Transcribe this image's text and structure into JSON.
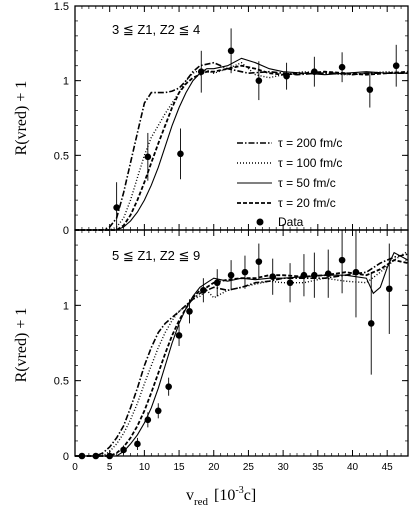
{
  "figure": {
    "x_label_main": "v",
    "x_label_sub": "red",
    "x_label_units": "[10",
    "x_label_exp": "-3",
    "x_label_close": "c]"
  },
  "chart_data": [
    {
      "type": "line",
      "panel": "top",
      "annotation": "3 ≦ Z1, Z2 ≦ 4",
      "ylabel": "R(vred) + 1",
      "ylim": [
        0,
        1.5
      ],
      "xlim": [
        0,
        48
      ],
      "yticks": [
        "0",
        "0.5",
        "1",
        "1.5"
      ],
      "legend": {
        "placement": "center-right",
        "entries": [
          {
            "label": "τ = 200 fm/c",
            "style": "dash-dot"
          },
          {
            "label": "τ = 100 fm/c",
            "style": "dotted"
          },
          {
            "label": "τ = 50 fm/c",
            "style": "solid"
          },
          {
            "label": "τ = 20 fm/c",
            "style": "dashed"
          },
          {
            "label": "Data",
            "style": "marker"
          }
        ]
      },
      "series": [
        {
          "name": "τ = 200 fm/c",
          "style": "dash-dot",
          "x": [
            0,
            4,
            5,
            6,
            7,
            8,
            9,
            10,
            11,
            12,
            13,
            14,
            15,
            16,
            17,
            18,
            20,
            22,
            25,
            28,
            30,
            32,
            35,
            38,
            40,
            42,
            45,
            48
          ],
          "y": [
            0,
            0,
            0.02,
            0.08,
            0.25,
            0.45,
            0.65,
            0.85,
            0.92,
            0.92,
            0.92,
            0.93,
            0.95,
            1.0,
            1.06,
            1.1,
            1.12,
            1.08,
            1.05,
            1.06,
            1.05,
            1.04,
            1.05,
            1.05,
            1.04,
            1.05,
            1.05,
            1.05
          ]
        },
        {
          "name": "τ = 100 fm/c",
          "style": "dotted",
          "x": [
            0,
            5,
            6,
            7,
            8,
            9,
            10,
            11,
            12,
            13,
            14,
            15,
            16,
            17,
            18,
            19,
            20,
            22,
            24,
            26,
            28,
            30,
            33,
            36,
            39,
            42,
            45,
            48
          ],
          "y": [
            0,
            0,
            0.02,
            0.08,
            0.2,
            0.35,
            0.5,
            0.62,
            0.7,
            0.78,
            0.85,
            0.92,
            1.0,
            1.05,
            1.07,
            1.07,
            1.05,
            1.08,
            1.12,
            1.04,
            1.02,
            1.04,
            1.06,
            1.05,
            1.04,
            1.05,
            1.06,
            1.05
          ]
        },
        {
          "name": "τ = 50 fm/c",
          "style": "solid",
          "x": [
            0,
            6,
            7,
            8,
            9,
            10,
            11,
            12,
            13,
            14,
            15,
            16,
            17,
            18,
            19,
            20,
            22,
            24,
            26,
            28,
            30,
            33,
            36,
            39,
            42,
            45,
            48
          ],
          "y": [
            0,
            0,
            0.02,
            0.06,
            0.12,
            0.2,
            0.3,
            0.42,
            0.56,
            0.7,
            0.82,
            0.92,
            1.0,
            1.05,
            1.08,
            1.08,
            1.1,
            1.15,
            1.12,
            1.08,
            1.06,
            1.05,
            1.04,
            1.05,
            1.06,
            1.05,
            1.05
          ]
        },
        {
          "name": "τ = 20 fm/c",
          "style": "dashed",
          "x": [
            0,
            6,
            7,
            8,
            9,
            10,
            11,
            12,
            13,
            14,
            15,
            16,
            17,
            18,
            19,
            20,
            22,
            24,
            26,
            28,
            30,
            33,
            36,
            39,
            42,
            45,
            48
          ],
          "y": [
            0,
            0,
            0.03,
            0.1,
            0.2,
            0.32,
            0.45,
            0.58,
            0.7,
            0.82,
            0.92,
            0.98,
            1.02,
            1.04,
            1.06,
            1.06,
            1.08,
            1.1,
            1.08,
            1.05,
            1.04,
            1.05,
            1.06,
            1.05,
            1.04,
            1.05,
            1.06
          ]
        }
      ],
      "data_points": {
        "name": "Data",
        "points": [
          {
            "x": 6,
            "y": 0.15,
            "err": 0.17
          },
          {
            "x": 10.5,
            "y": 0.49,
            "err": 0.16
          },
          {
            "x": 15.2,
            "y": 0.51,
            "err": 0.17
          },
          {
            "x": 18.2,
            "y": 1.06,
            "err": 0.14
          },
          {
            "x": 22.5,
            "y": 1.2,
            "err": 0.15
          },
          {
            "x": 26.5,
            "y": 1.0,
            "err": 0.13
          },
          {
            "x": 30.5,
            "y": 1.03,
            "err": 0.09
          },
          {
            "x": 34.5,
            "y": 1.06,
            "err": 0.1
          },
          {
            "x": 38.5,
            "y": 1.09,
            "err": 0.1
          },
          {
            "x": 42.5,
            "y": 0.94,
            "err": 0.12
          },
          {
            "x": 46.3,
            "y": 1.1,
            "err": 0.14
          }
        ]
      }
    },
    {
      "type": "line",
      "panel": "bottom",
      "annotation": "5 ≦ Z1, Z2 ≦ 9",
      "ylabel": "R(vred) + 1",
      "ylim": [
        0,
        1.5
      ],
      "xlim": [
        0,
        48
      ],
      "yticks": [
        "0",
        "0.5",
        "1"
      ],
      "xticks": [
        "0",
        "5",
        "10",
        "15",
        "20",
        "25",
        "30",
        "35",
        "40",
        "45"
      ],
      "series": [
        {
          "name": "τ = 200 fm/c",
          "style": "dash-dot",
          "x": [
            0,
            3,
            4,
            5,
            6,
            7,
            8,
            9,
            10,
            11,
            12,
            13,
            14,
            15,
            16,
            17,
            18,
            20,
            22,
            24,
            26,
            28,
            30,
            33,
            36,
            39,
            42,
            44,
            46,
            48
          ],
          "y": [
            0,
            0,
            0.02,
            0.06,
            0.12,
            0.2,
            0.32,
            0.45,
            0.6,
            0.72,
            0.82,
            0.88,
            0.92,
            0.96,
            1.0,
            1.04,
            1.08,
            1.12,
            1.1,
            1.12,
            1.15,
            1.16,
            1.18,
            1.18,
            1.18,
            1.2,
            1.22,
            1.28,
            1.32,
            1.34
          ]
        },
        {
          "name": "τ = 100 fm/c",
          "style": "dotted",
          "x": [
            0,
            4,
            5,
            6,
            7,
            8,
            9,
            10,
            11,
            12,
            13,
            14,
            15,
            16,
            17,
            18,
            19,
            20,
            22,
            24,
            26,
            28,
            30,
            33,
            36,
            39,
            42,
            44,
            46,
            48
          ],
          "y": [
            0,
            0,
            0.03,
            0.08,
            0.15,
            0.24,
            0.35,
            0.48,
            0.6,
            0.72,
            0.82,
            0.9,
            0.96,
            1.0,
            1.04,
            1.06,
            1.1,
            1.05,
            1.1,
            1.12,
            1.14,
            1.16,
            1.15,
            1.15,
            1.18,
            1.16,
            1.15,
            1.22,
            1.3,
            1.36
          ]
        },
        {
          "name": "τ = 50 fm/c",
          "style": "solid",
          "x": [
            0,
            6,
            7,
            8,
            9,
            10,
            11,
            12,
            13,
            14,
            15,
            16,
            17,
            18,
            19,
            20,
            22,
            24,
            26,
            28,
            30,
            33,
            36,
            39,
            42,
            43,
            44,
            45,
            46,
            48
          ],
          "y": [
            0,
            0,
            0.03,
            0.08,
            0.14,
            0.22,
            0.32,
            0.45,
            0.6,
            0.75,
            0.88,
            0.98,
            1.06,
            1.12,
            1.15,
            1.18,
            1.16,
            1.18,
            1.17,
            1.18,
            1.18,
            1.19,
            1.2,
            1.2,
            1.18,
            1.08,
            1.12,
            1.25,
            1.35,
            1.3
          ]
        },
        {
          "name": "τ = 20 fm/c",
          "style": "dashed",
          "x": [
            0,
            5,
            6,
            7,
            8,
            9,
            10,
            11,
            12,
            13,
            14,
            15,
            16,
            17,
            18,
            19,
            20,
            22,
            24,
            26,
            28,
            30,
            33,
            36,
            39,
            42,
            44,
            46,
            48
          ],
          "y": [
            0,
            0,
            0.02,
            0.06,
            0.12,
            0.2,
            0.3,
            0.42,
            0.55,
            0.68,
            0.8,
            0.9,
            0.98,
            1.05,
            1.1,
            1.12,
            1.15,
            1.17,
            1.18,
            1.18,
            1.2,
            1.2,
            1.19,
            1.2,
            1.22,
            1.2,
            1.24,
            1.3,
            1.28
          ]
        }
      ],
      "data_points": {
        "name": "Data",
        "points": [
          {
            "x": 1,
            "y": 0.0,
            "err": 0.0
          },
          {
            "x": 3,
            "y": 0.0,
            "err": 0.0
          },
          {
            "x": 5,
            "y": 0.0,
            "err": 0.0
          },
          {
            "x": 7,
            "y": 0.04,
            "err": 0.03
          },
          {
            "x": 9,
            "y": 0.08,
            "err": 0.04
          },
          {
            "x": 10.5,
            "y": 0.24,
            "err": 0.05
          },
          {
            "x": 12,
            "y": 0.3,
            "err": 0.05
          },
          {
            "x": 13.5,
            "y": 0.46,
            "err": 0.06
          },
          {
            "x": 15,
            "y": 0.8,
            "err": 0.07
          },
          {
            "x": 16.5,
            "y": 0.96,
            "err": 0.08
          },
          {
            "x": 18.5,
            "y": 1.1,
            "err": 0.08
          },
          {
            "x": 20.5,
            "y": 1.15,
            "err": 0.09
          },
          {
            "x": 22.5,
            "y": 1.2,
            "err": 0.1
          },
          {
            "x": 24.5,
            "y": 1.22,
            "err": 0.11
          },
          {
            "x": 26.5,
            "y": 1.29,
            "err": 0.12
          },
          {
            "x": 28.5,
            "y": 1.19,
            "err": 0.12
          },
          {
            "x": 31,
            "y": 1.15,
            "err": 0.13
          },
          {
            "x": 33,
            "y": 1.2,
            "err": 0.14
          },
          {
            "x": 34.5,
            "y": 1.2,
            "err": 0.15
          },
          {
            "x": 36.5,
            "y": 1.21,
            "err": 0.16
          },
          {
            "x": 38.5,
            "y": 1.3,
            "err": 0.22
          },
          {
            "x": 40.5,
            "y": 1.22,
            "err": 0.3
          },
          {
            "x": 42.7,
            "y": 0.88,
            "err": 0.34
          },
          {
            "x": 45.3,
            "y": 1.11,
            "err": 0.3
          }
        ]
      }
    }
  ]
}
